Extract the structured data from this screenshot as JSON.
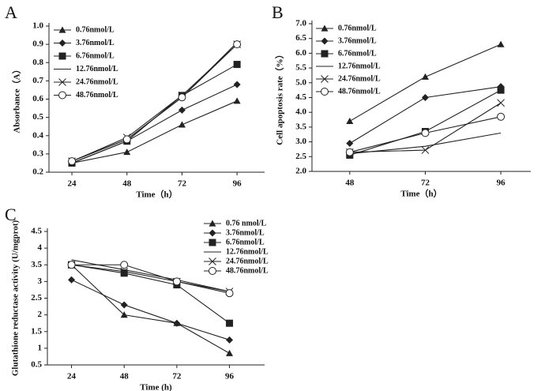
{
  "chart_data": [
    {
      "type": "line",
      "panel_label": "A",
      "xlabel": "Time（h）",
      "ylabel": "Absorbance（A）",
      "x": [
        24,
        48,
        72,
        96
      ],
      "xlim": [
        14,
        108
      ],
      "xticks": [
        24,
        48,
        72,
        96
      ],
      "ylim": [
        0.2,
        1.0
      ],
      "yticks": [
        0.2,
        0.3,
        0.4,
        0.5,
        0.6,
        0.7,
        0.8,
        0.9,
        {
          "value": 1.0,
          "label": "1.0"
        }
      ],
      "legend": "upper left",
      "series": [
        {
          "name": "0.76nmol/L",
          "color": "#222222",
          "marker": "triangle",
          "values": [
            0.25,
            0.31,
            0.46,
            0.59
          ]
        },
        {
          "name": "3.76nmol/L",
          "color": "#222222",
          "marker": "diamond",
          "values": [
            0.25,
            0.37,
            0.54,
            0.68
          ]
        },
        {
          "name": "6.76nmol/L",
          "color": "#222222",
          "marker": "square",
          "values": [
            0.25,
            0.37,
            0.62,
            0.79
          ]
        },
        {
          "name": "12.76nmol/L",
          "color": "#222222",
          "marker": "none",
          "values": [
            0.26,
            0.38,
            0.61,
            0.91
          ]
        },
        {
          "name": "24.76nmol/L",
          "color": "#222222",
          "marker": "x",
          "values": [
            0.26,
            0.39,
            0.62,
            0.9
          ]
        },
        {
          "name": "48.76nmol/L",
          "color": "#222222",
          "marker": "circle",
          "values": [
            0.26,
            0.38,
            0.61,
            0.9
          ]
        }
      ]
    },
    {
      "type": "line",
      "panel_label": "B",
      "xlabel": "Time（h）",
      "ylabel": "Cell apoptosis rate（%）",
      "x": [
        48,
        72,
        96
      ],
      "xlim": [
        36,
        105.5
      ],
      "xticks": [
        48,
        72,
        96
      ],
      "ylim": [
        2.0,
        7.0
      ],
      "yticks": [
        {
          "value": 2.0,
          "label": "2.0"
        },
        2.5,
        {
          "value": 3.0,
          "label": "3.0"
        },
        3.5,
        {
          "value": 4.0,
          "label": "4.0"
        },
        4.5,
        {
          "value": 5.0,
          "label": "5.0"
        },
        5.5,
        {
          "value": 6.0,
          "label": "6.0"
        },
        6.5,
        {
          "value": 7.0,
          "label": "7.0"
        }
      ],
      "legend": "upper left",
      "series": [
        {
          "name": "0.76nmol/L",
          "color": "#222222",
          "marker": "triangle",
          "values": [
            3.7,
            5.2,
            6.3
          ]
        },
        {
          "name": "3.76nmol/L",
          "color": "#222222",
          "marker": "diamond",
          "values": [
            2.95,
            4.5,
            4.87
          ]
        },
        {
          "name": "6.76nmol/L",
          "color": "#222222",
          "marker": "square",
          "values": [
            2.55,
            3.35,
            4.75
          ]
        },
        {
          "name": "12.76nmol/L",
          "color": "#222222",
          "marker": "none",
          "values": [
            2.6,
            2.85,
            3.3
          ]
        },
        {
          "name": "24.76nmol/L",
          "color": "#222222",
          "marker": "x",
          "values": [
            2.65,
            2.72,
            4.32
          ]
        },
        {
          "name": "48.76nmol/L",
          "color": "#222222",
          "marker": "circle",
          "values": [
            2.65,
            3.3,
            3.85
          ]
        }
      ]
    },
    {
      "type": "line",
      "panel_label": "C",
      "xlabel": "Time (h)",
      "ylabel": "Glutathione reductase activity (U/mgprot)",
      "x": [
        24,
        48,
        72,
        96
      ],
      "xlim": [
        13,
        112
      ],
      "xticks": [
        24,
        48,
        72,
        96
      ],
      "ylim": [
        0.5,
        4.5
      ],
      "yticks": [
        0.5,
        1,
        1.5,
        2,
        2.5,
        3,
        3.5,
        4,
        4.5
      ],
      "legend": "upper right",
      "series": [
        {
          "name": "0.76 nmol/L",
          "color": "#222222",
          "marker": "triangle",
          "values": [
            3.5,
            2.0,
            1.75,
            0.85
          ]
        },
        {
          "name": "3.76nmol/L",
          "color": "#222222",
          "marker": "diamond",
          "values": [
            3.05,
            2.3,
            1.75,
            1.25
          ]
        },
        {
          "name": "6.76nmol/L",
          "color": "#222222",
          "marker": "square",
          "values": [
            3.5,
            3.25,
            2.9,
            1.75
          ]
        },
        {
          "name": "12.76nmol/L",
          "color": "#222222",
          "marker": "none",
          "values": [
            3.65,
            3.35,
            3.05,
            2.7
          ]
        },
        {
          "name": "24.76nmol/L",
          "color": "#222222",
          "marker": "x",
          "values": [
            3.5,
            3.3,
            3.0,
            2.7
          ]
        },
        {
          "name": "48.76nmol/L",
          "color": "#222222",
          "marker": "circle",
          "values": [
            3.5,
            3.5,
            3.0,
            2.65
          ]
        }
      ]
    }
  ]
}
